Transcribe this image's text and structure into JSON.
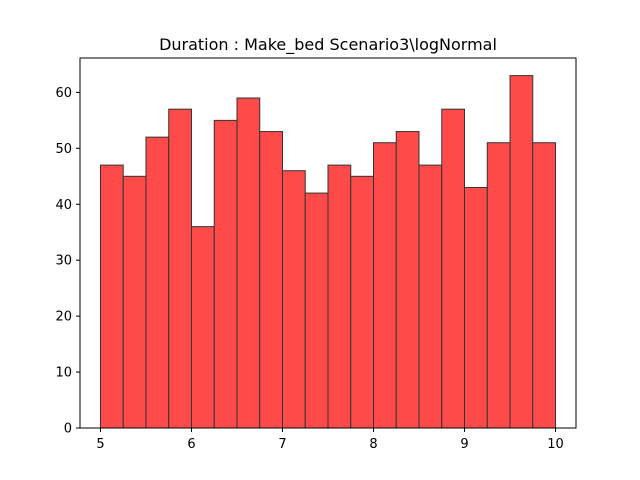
{
  "chart_data": {
    "type": "bar",
    "subtype": "histogram",
    "title": "Duration : Make_bed Scenario3\\logNormal",
    "xlabel": "",
    "ylabel": "",
    "xlim": [
      4.775,
      10.225
    ],
    "ylim": [
      0,
      66.15
    ],
    "xticks": [
      5,
      6,
      7,
      8,
      9,
      10
    ],
    "yticks": [
      0,
      10,
      20,
      30,
      40,
      50,
      60
    ],
    "bin_edges": [
      5.0,
      5.25,
      5.5,
      5.75,
      6.0,
      6.25,
      6.5,
      6.75,
      7.0,
      7.25,
      7.5,
      7.75,
      8.0,
      8.25,
      8.5,
      8.75,
      9.0,
      9.25,
      9.5,
      9.75,
      10.0
    ],
    "values": [
      47,
      45,
      52,
      57,
      36,
      55,
      59,
      53,
      46,
      42,
      47,
      45,
      51,
      53,
      47,
      57,
      43,
      51,
      63,
      51
    ],
    "bar_color": "#ff4a4a",
    "edge_color": "#333333",
    "grid": false,
    "legend": false
  }
}
